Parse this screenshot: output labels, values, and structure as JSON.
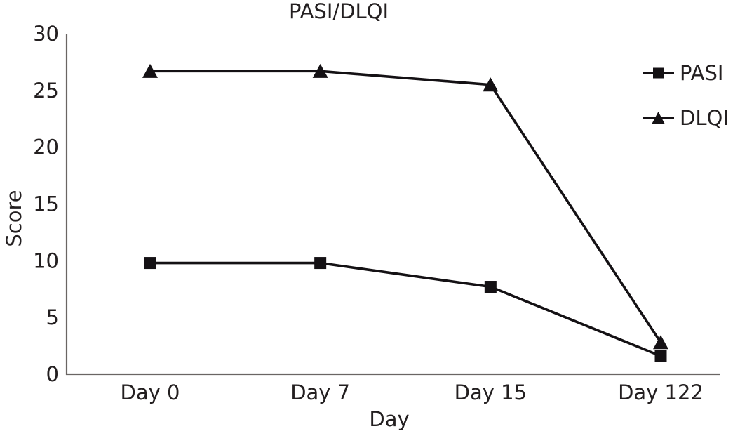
{
  "chart_data": {
    "type": "line",
    "title": "PASI/DLQI",
    "xlabel": "Day",
    "ylabel": "Score",
    "categories": [
      "Day 0",
      "Day 7",
      "Day 15",
      "Day 122"
    ],
    "series": [
      {
        "name": "PASI",
        "marker": "square",
        "values": [
          9.8,
          9.8,
          7.7,
          1.6
        ]
      },
      {
        "name": "DLQI",
        "marker": "triangle",
        "values": [
          26.7,
          26.7,
          25.5,
          2.8
        ]
      }
    ],
    "ylim": [
      0,
      30
    ],
    "yticks": [
      0,
      5,
      10,
      15,
      20,
      25,
      30
    ],
    "grid": false,
    "legend_position": "top-right",
    "colors": {
      "line": "#141114",
      "marker": "#141114",
      "text": "#231f20",
      "axis": "#6a6563",
      "background": "#ffffff"
    }
  }
}
